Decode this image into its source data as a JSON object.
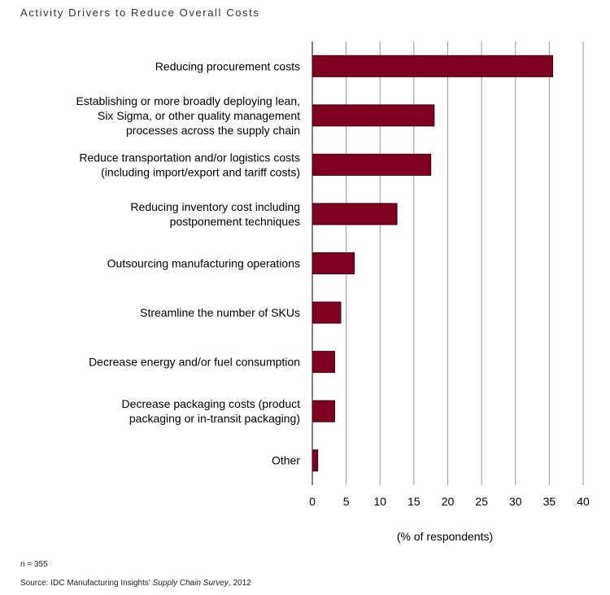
{
  "chart_data": {
    "type": "bar",
    "orientation": "horizontal",
    "title": "Activity Drivers to Reduce Overall Costs",
    "xlabel": "(% of respondents)",
    "ylabel": "",
    "xlim": [
      0,
      40
    ],
    "xticks": [
      0,
      5,
      10,
      15,
      20,
      25,
      30,
      35,
      40
    ],
    "grid": "vertical",
    "bar_color": "#800020",
    "categories": [
      [
        "Reducing procurement costs"
      ],
      [
        "Establishing or more broadly deploying lean,",
        "Six Sigma, or other quality management",
        "processes across the supply chain"
      ],
      [
        "Reduce transportation and/or logistics costs",
        "(including import/export and tariff costs)"
      ],
      [
        "Reducing inventory cost including",
        "postponement techniques"
      ],
      [
        "Outsourcing manufacturing operations"
      ],
      [
        "Streamline the number of SKUs"
      ],
      [
        "Decrease energy and/or fuel consumption"
      ],
      [
        "Decrease packaging costs (product",
        "packaging or in-transit packaging)"
      ],
      [
        "Other"
      ]
    ],
    "values": [
      35.5,
      18,
      17.5,
      12.5,
      6.2,
      4.2,
      3.3,
      3.3,
      0.8
    ]
  },
  "footer": {
    "n": "n = 355",
    "source_prefix": "Source: IDC Manufacturing Insights' ",
    "source_italic": "Supply Chain Survey",
    "source_suffix": ", 2012"
  }
}
